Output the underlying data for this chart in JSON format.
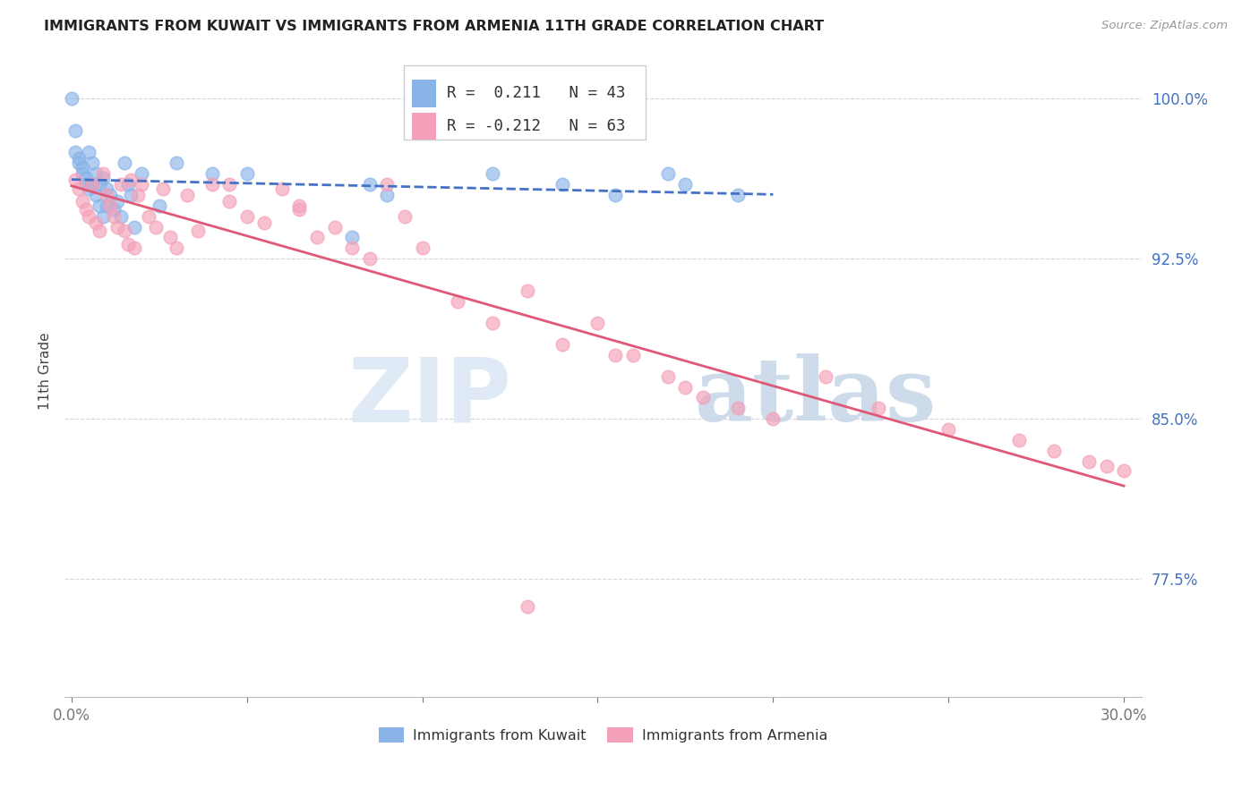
{
  "title": "IMMIGRANTS FROM KUWAIT VS IMMIGRANTS FROM ARMENIA 11TH GRADE CORRELATION CHART",
  "source": "Source: ZipAtlas.com",
  "ylabel": "11th Grade",
  "ymin": 0.72,
  "ymax": 1.025,
  "xmin": -0.002,
  "xmax": 0.305,
  "legend_r_kuwait": "0.211",
  "legend_n_kuwait": "43",
  "legend_r_armenia": "-0.212",
  "legend_n_armenia": "63",
  "kuwait_color": "#8ab4e8",
  "armenia_color": "#f4a0b8",
  "trend_kuwait_color": "#4472C4",
  "trend_armenia_color": "#e05878",
  "ytick_positions": [
    0.775,
    0.85,
    0.925,
    1.0
  ],
  "ytick_labels": [
    "77.5%",
    "85.0%",
    "92.5%",
    "100.0%"
  ],
  "watermark_zip": "ZIP",
  "watermark_atlas": "atlas",
  "background_color": "#ffffff",
  "grid_color": "#cccccc"
}
